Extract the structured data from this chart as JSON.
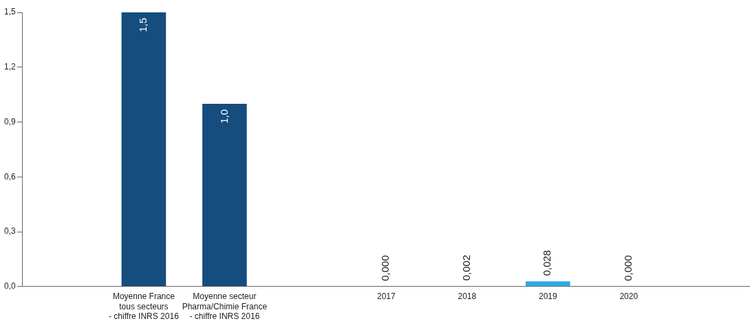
{
  "chart_data": {
    "type": "bar",
    "categories": [
      null,
      "Moyenne France\ntous secteurs\n- chiffre INRS 2016",
      "Moyenne secteur\nPharma/Chimie France\n- chiffre INRS 2016",
      null,
      "2017",
      "2018",
      "2019",
      "2020",
      null
    ],
    "values": [
      null,
      1.5,
      1.0,
      null,
      0.0,
      0.002,
      0.028,
      0.0,
      null
    ],
    "colors": [
      null,
      "#174c7f",
      "#174c7f",
      null,
      "#29abe2",
      "#29abe2",
      "#29abe2",
      "#29abe2",
      null
    ],
    "value_labels": [
      null,
      "1,5",
      "1,0",
      null,
      "0,000",
      "0,002",
      "0,028",
      "0,000",
      null
    ],
    "ylim": [
      0,
      1.5
    ],
    "yticks": [
      {
        "value": 0,
        "label": "0,0"
      },
      {
        "value": 0.3,
        "label": "0,3"
      },
      {
        "value": 0.6,
        "label": "0,6"
      },
      {
        "value": 0.9,
        "label": "0,9"
      },
      {
        "value": 1.2,
        "label": "1,2"
      },
      {
        "value": 1.5,
        "label": "1,5"
      }
    ],
    "grid": false,
    "legend": false
  }
}
